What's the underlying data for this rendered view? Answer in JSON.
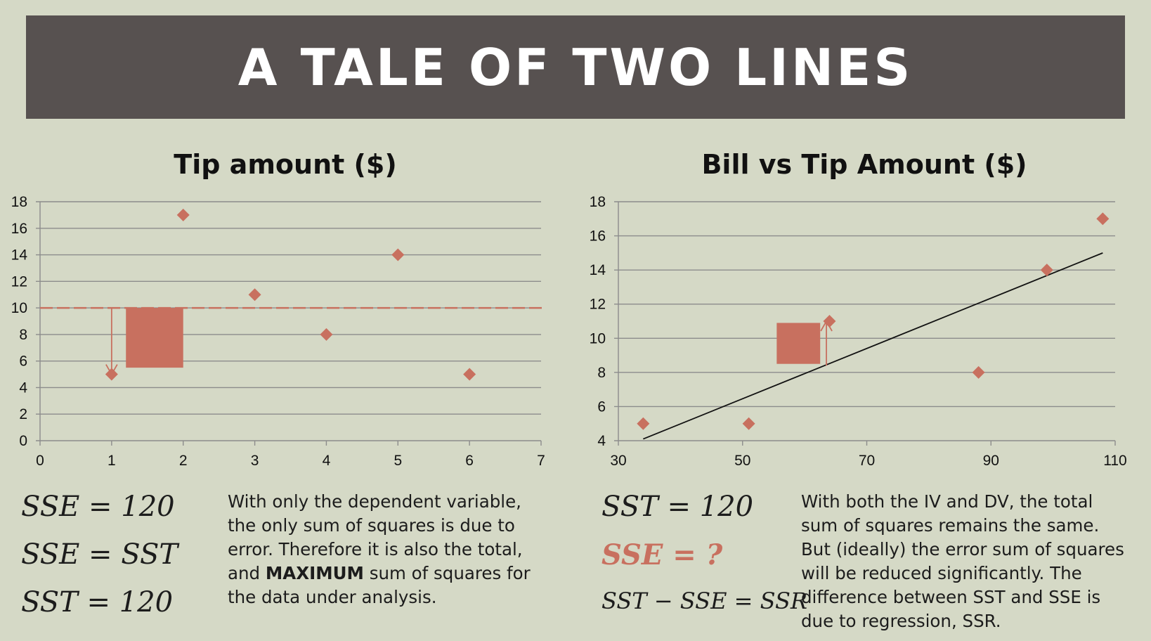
{
  "slide": {
    "title": "A TALE OF TWO LINES"
  },
  "colors": {
    "background": "#d5d9c6",
    "title_bar": "#575150",
    "accent": "#c8705f",
    "grid": "#8c8c8c",
    "text": "#1c1c1c"
  },
  "left": {
    "equations": [
      "SSE = 120",
      "SSE = SST",
      "SST = 120"
    ],
    "description_parts": [
      "With only the dependent variable, the only sum of squares is due to error. Therefore it is also the total, and ",
      "MAXIMUM",
      " sum of squares for the data under analysis."
    ]
  },
  "right": {
    "equations": [
      "SST = 120",
      "SSE = ?",
      "SST − SSE = SSR"
    ],
    "description": "With both the IV and DV, the total sum of squares remains the same. But (ideally) the error sum of squares will be reduced significantly. The difference between SST and SSE is due to regression, SSR."
  },
  "chart_data": [
    {
      "type": "scatter",
      "title": "Tip amount ($)",
      "xlabel": "",
      "ylabel": "",
      "xlim": [
        0,
        7
      ],
      "ylim": [
        0,
        18
      ],
      "xticks": [
        0,
        1,
        2,
        3,
        4,
        5,
        6,
        7
      ],
      "yticks": [
        0,
        2,
        4,
        6,
        8,
        10,
        12,
        14,
        16,
        18
      ],
      "grid": true,
      "marker": "diamond",
      "points": [
        [
          1,
          5
        ],
        [
          2,
          17
        ],
        [
          3,
          11
        ],
        [
          4,
          8
        ],
        [
          5,
          14
        ],
        [
          6,
          5
        ]
      ],
      "reference_line": {
        "style": "dashed",
        "y": 10
      },
      "residual_arrow": {
        "x": 1,
        "from": 10,
        "to": 5
      },
      "residual_square": {
        "x": [
          1.2,
          2
        ],
        "y": [
          5.5,
          10
        ]
      }
    },
    {
      "type": "scatter",
      "title": "Bill vs Tip Amount ($)",
      "xlabel": "",
      "ylabel": "",
      "xlim": [
        30,
        110
      ],
      "ylim": [
        4,
        18
      ],
      "xticks": [
        30,
        50,
        70,
        90,
        110
      ],
      "yticks": [
        4,
        6,
        8,
        10,
        12,
        14,
        16,
        18
      ],
      "grid": true,
      "marker": "diamond",
      "points": [
        [
          34,
          5
        ],
        [
          51,
          5
        ],
        [
          64,
          11
        ],
        [
          88,
          8
        ],
        [
          99,
          14
        ],
        [
          108,
          17
        ]
      ],
      "regression_line": {
        "from": [
          34,
          4.1
        ],
        "to": [
          108,
          15
        ]
      },
      "residual_arrow": {
        "x": 63.5,
        "from": 8.4,
        "to": 11
      },
      "residual_square": {
        "x": [
          55.5,
          62.5
        ],
        "y": [
          8.5,
          10.9
        ]
      }
    }
  ]
}
